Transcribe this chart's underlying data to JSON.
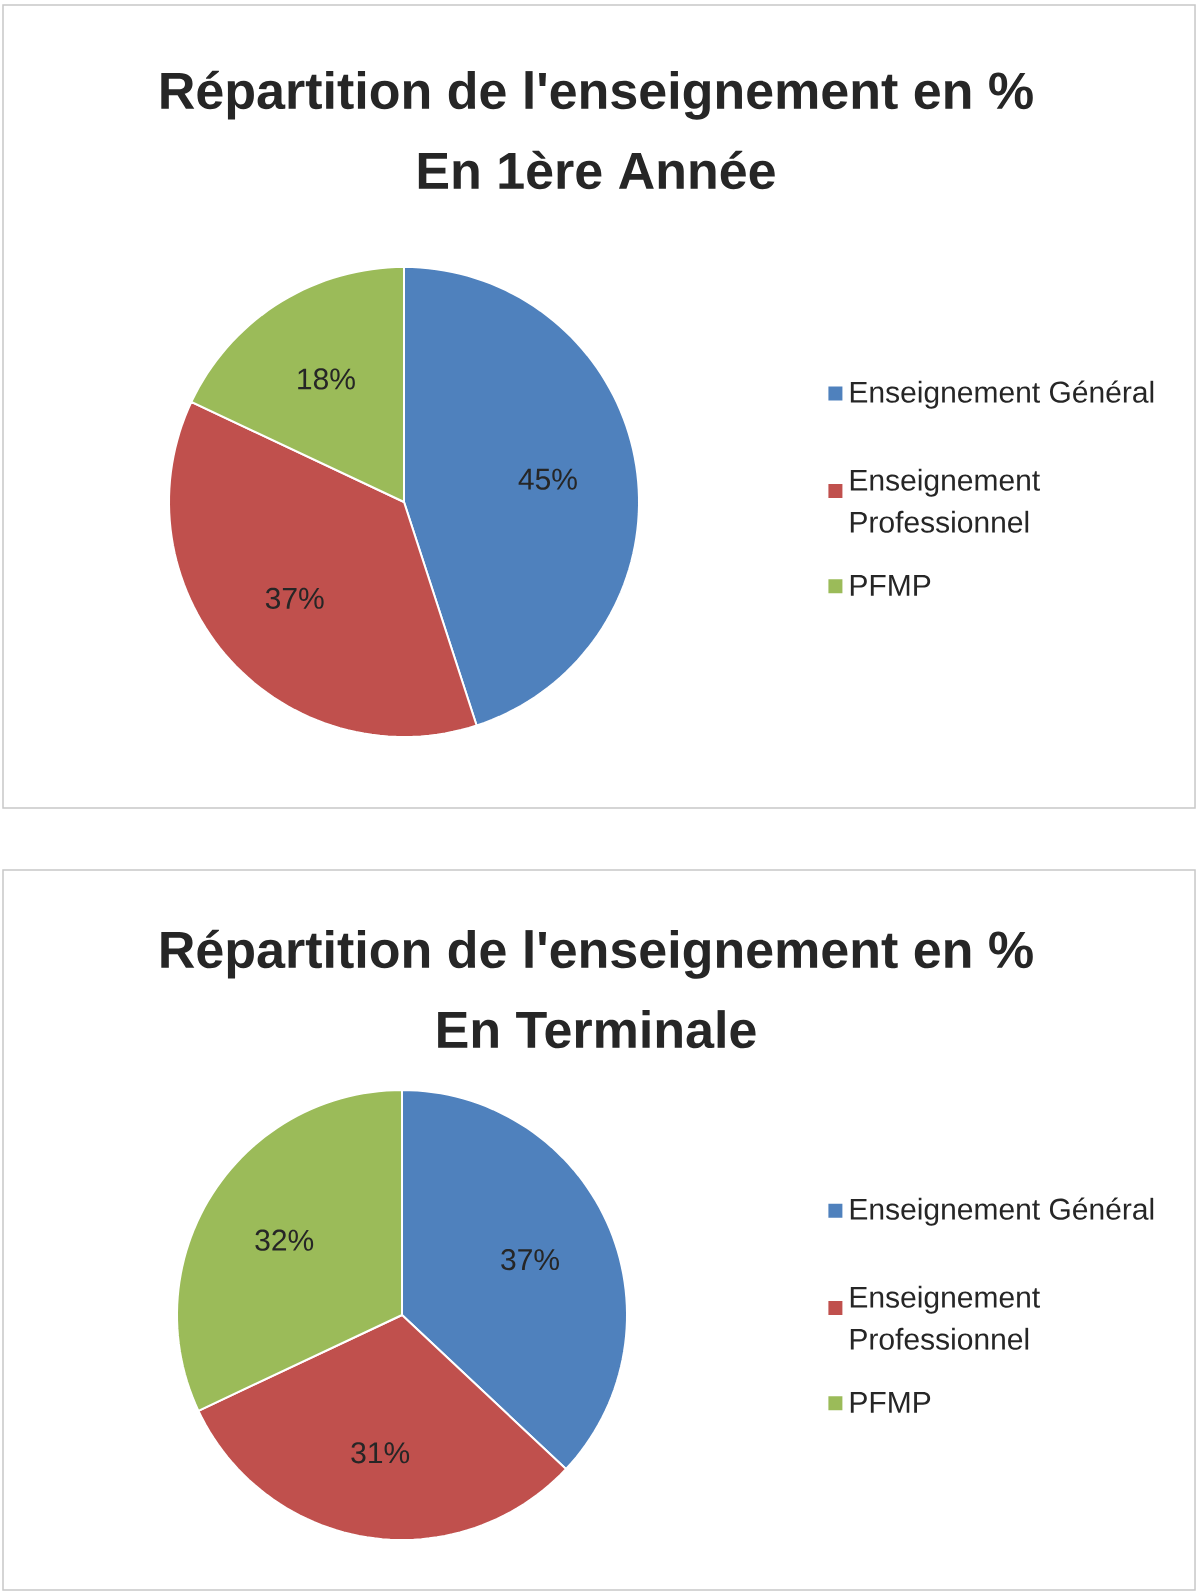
{
  "chart_data": [
    {
      "type": "pie",
      "title": "Répartition de l'enseignement en %",
      "subtitle": "En 1ère Année",
      "categories": [
        "Enseignement Général",
        "Enseignement Professionnel",
        "PFMP"
      ],
      "values": [
        45,
        37,
        18
      ],
      "colors": [
        "#4f81bd",
        "#c0504d",
        "#9bbb59"
      ],
      "value_labels": [
        "45%",
        "37%",
        "18%"
      ],
      "legend": "right"
    },
    {
      "type": "pie",
      "title": "Répartition de l'enseignement en %",
      "subtitle": "En Terminale",
      "categories": [
        "Enseignement Général",
        "Enseignement Professionnel",
        "PFMP"
      ],
      "values": [
        37,
        31,
        32
      ],
      "colors": [
        "#4f81bd",
        "#c0504d",
        "#9bbb59"
      ],
      "value_labels": [
        "37%",
        "31%",
        "32%"
      ],
      "legend": "right"
    }
  ]
}
